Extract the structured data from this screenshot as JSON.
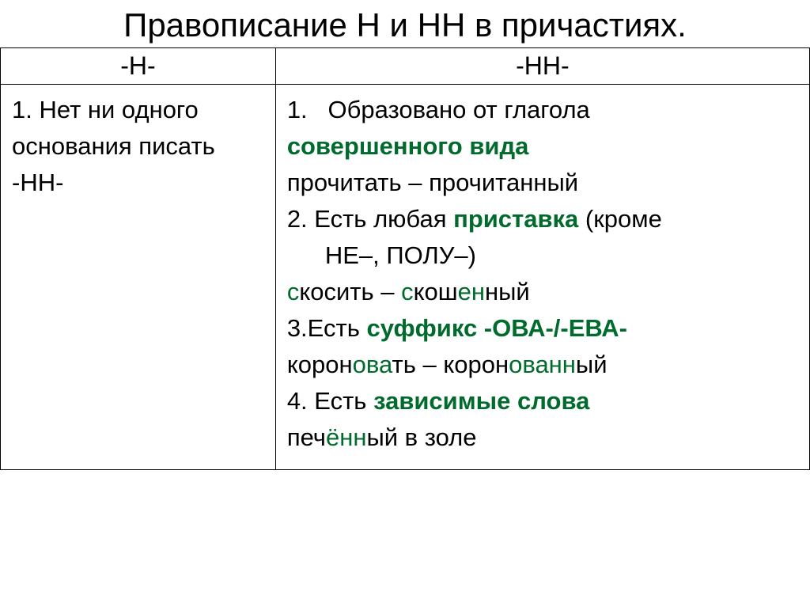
{
  "colors": {
    "text": "#000000",
    "accent": "#006b2d",
    "background": "#ffffff",
    "border": "#000000"
  },
  "title": "Правописание Н и НН в причастиях.",
  "headers": {
    "left": "-Н-",
    "right": "-НН-"
  },
  "left": {
    "l1": "1. Нет ни одного",
    "l2": "основания писать",
    "l3": "-НН-"
  },
  "right": {
    "r1a": "1.",
    "r1b": "Образовано от глагола",
    "r2": "совершенного вида",
    "r3": "прочитать – прочитанный",
    "r4a": "2. Есть любая ",
    "r4b": "приставка",
    "r4c": " (кроме",
    "r5": "НЕ–, ПОЛУ–)",
    "r6a": "с",
    "r6b": "косить – ",
    "r6c": "с",
    "r6d": "кош",
    "r6e": "ен",
    "r6f": "н",
    "r6g": "ый",
    "r7a": "3.Есть ",
    "r7b": "суффикс -ОВА-/-ЕВА-",
    "r8a": "корон",
    "r8b": "ова",
    "r8c": "ть – корон",
    "r8d": "ованн",
    "r8e": "ый",
    "r9a": "4. Есть ",
    "r9b": "зависимые слова",
    "r10a": "печ",
    "r10b": "ённ",
    "r10c": "ый в золе"
  }
}
